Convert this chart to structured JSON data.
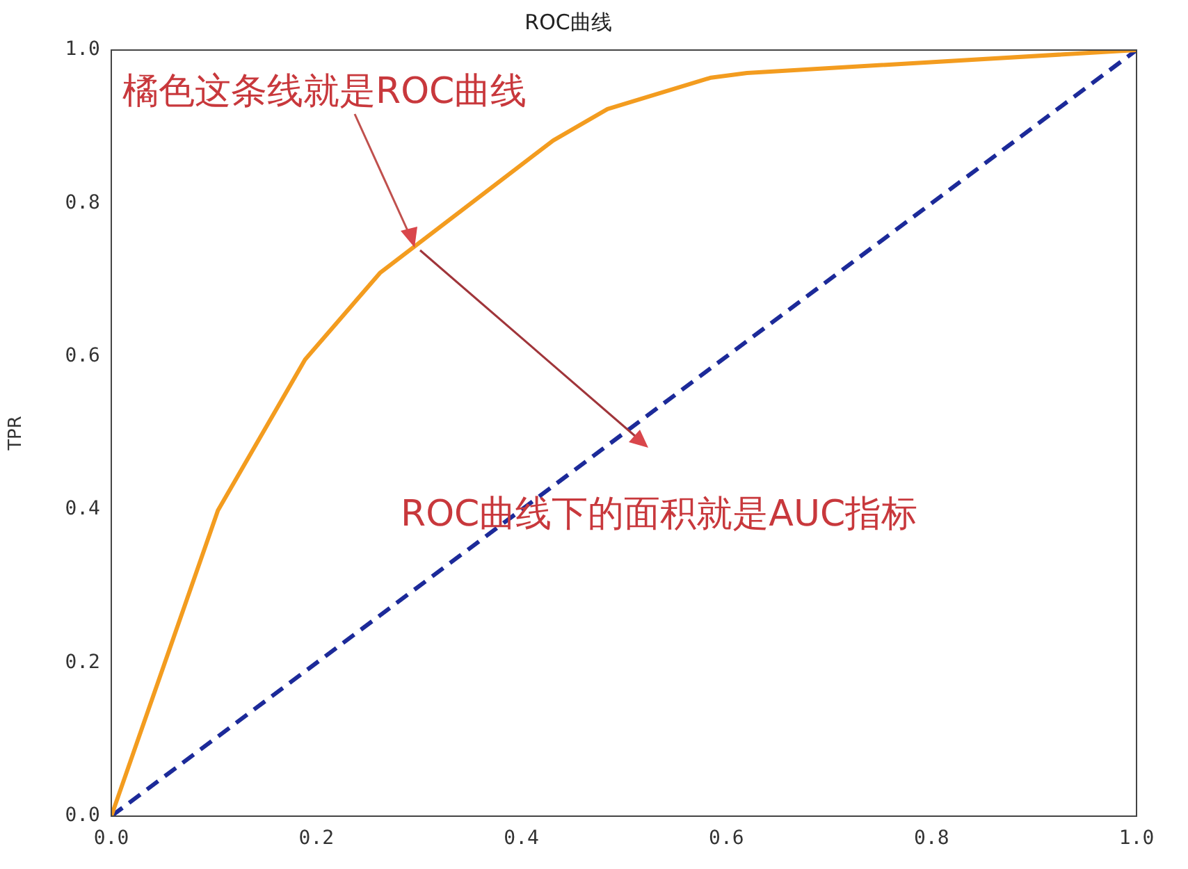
{
  "chart_data": {
    "type": "line",
    "title": "ROC曲线",
    "ylabel": "TPR",
    "xlim": [
      0,
      1
    ],
    "ylim": [
      0,
      1
    ],
    "xticks": [
      {
        "value": 0,
        "label": "0.0"
      },
      {
        "value": 0.2,
        "label": "0.2"
      },
      {
        "value": 0.4,
        "label": "0.4"
      },
      {
        "value": 0.6,
        "label": "0.6"
      },
      {
        "value": 0.8,
        "label": "0.8"
      },
      {
        "value": 1,
        "label": "1.0"
      }
    ],
    "yticks": [
      {
        "value": 0,
        "label": "0.0"
      },
      {
        "value": 0.2,
        "label": "0.2"
      },
      {
        "value": 0.4,
        "label": "0.4"
      },
      {
        "value": 0.6,
        "label": "0.6"
      },
      {
        "value": 0.8,
        "label": "0.8"
      },
      {
        "value": 1,
        "label": "1.0"
      }
    ],
    "grid": false,
    "legend": false,
    "marker": "none",
    "series": [
      {
        "color": "#f39c1f",
        "line_style": "solid",
        "x": [
          0,
          0.104,
          0.189,
          0.262,
          0.431,
          0.484,
          0.585,
          0.62,
          1
        ],
        "values": [
          0,
          0.399,
          0.596,
          0.709,
          0.882,
          0.923,
          0.964,
          0.97,
          1
        ]
      },
      {
        "color": "#1c2a99",
        "line_style": "dashed",
        "x": [
          0,
          1
        ],
        "values": [
          0,
          1
        ]
      }
    ],
    "annotations": [
      "橘色这条线就是ROC曲线",
      "ROC曲线下的面积就是AUC指标"
    ]
  }
}
